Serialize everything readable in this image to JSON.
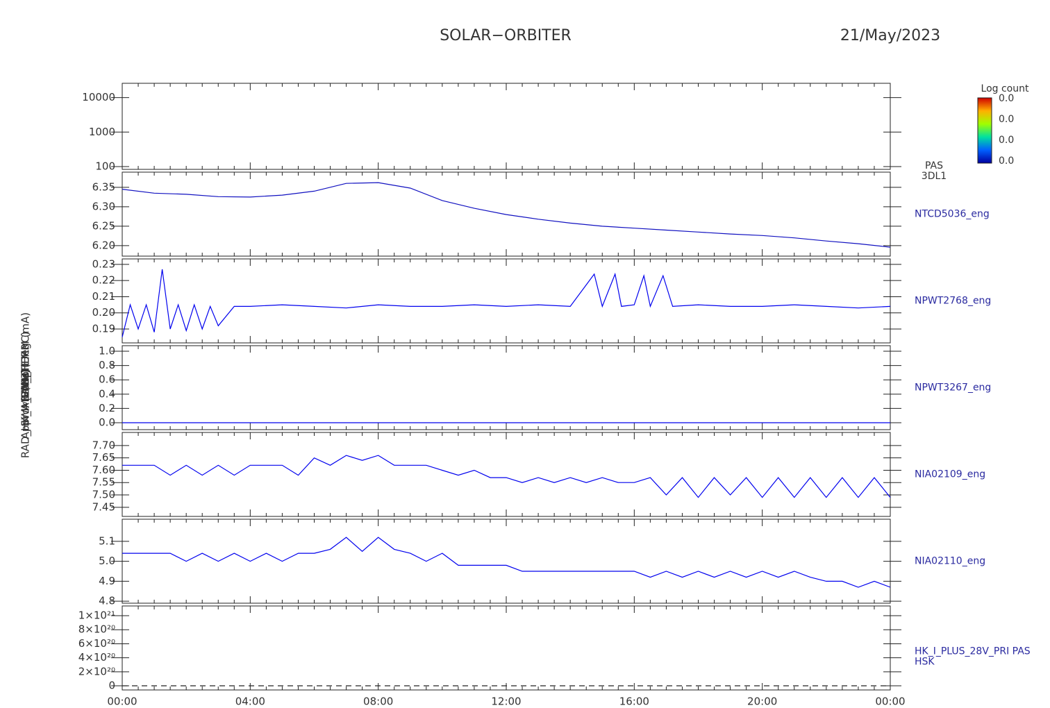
{
  "title": "SOLAR−ORBITER",
  "date": "21/May/2023",
  "xaxis": {
    "xlim": [
      0,
      24
    ],
    "xticks": [
      {
        "value": 0,
        "label": "00:00"
      },
      {
        "value": 4,
        "label": "04:00"
      },
      {
        "value": 8,
        "label": "08:00"
      },
      {
        "value": 12,
        "label": "12:00"
      },
      {
        "value": 16,
        "label": "16:00"
      },
      {
        "value": 20,
        "label": "20:00"
      },
      {
        "value": 24,
        "label": "00:00"
      }
    ],
    "xminor": [
      0.5,
      1,
      1.5,
      2,
      2.5,
      3,
      3.5,
      4.5,
      5,
      5.5,
      6,
      6.5,
      7,
      7.5,
      8.5,
      9,
      9.5,
      10,
      10.5,
      11,
      11.5,
      12.5,
      13,
      13.5,
      14,
      14.5,
      15,
      15.5,
      16.5,
      17,
      17.5,
      18,
      18.5,
      19,
      19.5,
      20.5,
      21,
      21.5,
      22,
      22.5,
      23,
      23.5
    ]
  },
  "chart_data": [
    {
      "type": "spectrogram",
      "log_scale": true,
      "ylabel": "E (eV)",
      "ylim": [
        83,
        26000
      ],
      "yticks": [
        100,
        1000,
        10000
      ],
      "label": [
        "PAS",
        "3DL1"
      ],
      "colorbar": {
        "title": "Log count",
        "ticks": [
          "0.0",
          "0.0",
          "0.0",
          "0.0"
        ]
      }
    },
    {
      "type": "line",
      "ylabel": "Approx Temp (DegC)",
      "ylim": [
        6.173,
        6.389
      ],
      "yticks": [
        {
          "value": 6.2,
          "label": "6.20"
        },
        6.25,
        {
          "value": 6.3,
          "label": "6.30"
        },
        6.35
      ],
      "label": [
        "NTCD5036_eng"
      ],
      "color": "#1010c0",
      "x": [
        0,
        1,
        2,
        3,
        4,
        5,
        6,
        7,
        8,
        9,
        10,
        11,
        12,
        13,
        14,
        15,
        16,
        17,
        18,
        19,
        20,
        21,
        22,
        23,
        24
      ],
      "values": [
        6.345,
        6.335,
        6.332,
        6.326,
        6.325,
        6.33,
        6.34,
        6.36,
        6.362,
        6.348,
        6.316,
        6.296,
        6.28,
        6.268,
        6.258,
        6.25,
        6.245,
        6.24,
        6.235,
        6.23,
        6.226,
        6.22,
        6.212,
        6.205,
        6.196
      ]
    },
    {
      "type": "line",
      "ylabel": "SWA_EAS_TEMP",
      "ylim": [
        0.1814,
        0.2334
      ],
      "yticks": [
        0.19,
        {
          "value": 0.2,
          "label": "0.20"
        },
        0.21,
        0.22,
        0.23
      ],
      "label": [
        "NPWT2768_eng"
      ],
      "color": "#0000ee",
      "x": [
        0,
        0.25,
        0.5,
        0.75,
        1,
        1.25,
        1.5,
        1.75,
        2,
        2.25,
        2.5,
        2.75,
        3,
        3.5,
        4,
        5,
        6,
        7,
        8,
        9,
        10,
        11,
        12,
        13,
        14,
        14.75,
        15,
        15.4,
        15.6,
        16,
        16.3,
        16.5,
        16.9,
        17.2,
        18,
        19,
        20,
        21,
        22,
        23,
        24
      ],
      "values": [
        0.185,
        0.205,
        0.19,
        0.205,
        0.188,
        0.227,
        0.19,
        0.205,
        0.189,
        0.205,
        0.19,
        0.204,
        0.192,
        0.204,
        0.204,
        0.205,
        0.204,
        0.203,
        0.205,
        0.204,
        0.204,
        0.205,
        0.204,
        0.205,
        0.204,
        0.224,
        0.204,
        0.224,
        0.204,
        0.205,
        0.223,
        0.204,
        0.223,
        0.204,
        0.205,
        0.204,
        0.204,
        0.205,
        0.204,
        0.203,
        0.204
      ]
    },
    {
      "type": "line",
      "ylabel": "PWM",
      "ylim": [
        -0.097,
        1.078
      ],
      "yticks": [
        {
          "value": 0,
          "label": "0.0"
        },
        0.2,
        0.4,
        0.6,
        0.8,
        {
          "value": 1,
          "label": "1.0"
        }
      ],
      "label": [
        "NPWT3267_eng"
      ],
      "color": "#0000ee",
      "x": [
        0,
        24
      ],
      "values": [
        0,
        0
      ]
    },
    {
      "type": "line",
      "ylabel": "(Volts)",
      "ylim": [
        7.413,
        7.753
      ],
      "yticks": [
        7.45,
        {
          "value": 7.5,
          "label": "7.50"
        },
        7.55,
        {
          "value": 7.6,
          "label": "7.60"
        },
        7.65,
        {
          "value": 7.7,
          "label": "7.70"
        }
      ],
      "label": [
        "NIA02109_eng"
      ],
      "color": "#0000ee",
      "x": [
        0,
        0.5,
        1,
        1.5,
        2,
        2.5,
        3,
        3.5,
        4,
        4.5,
        5,
        5.5,
        6,
        6.5,
        7,
        7.5,
        8,
        8.5,
        9,
        9.5,
        10,
        10.5,
        11,
        11.5,
        12,
        12.5,
        13,
        13.5,
        14,
        14.5,
        15,
        15.5,
        16,
        16.5,
        17,
        17.5,
        18,
        18.5,
        19,
        19.5,
        20,
        20.5,
        21,
        21.5,
        22,
        22.5,
        23,
        23.5,
        24
      ],
      "values": [
        7.62,
        7.62,
        7.62,
        7.58,
        7.62,
        7.58,
        7.62,
        7.58,
        7.62,
        7.62,
        7.62,
        7.58,
        7.65,
        7.62,
        7.66,
        7.64,
        7.66,
        7.62,
        7.62,
        7.62,
        7.6,
        7.58,
        7.6,
        7.57,
        7.57,
        7.55,
        7.57,
        7.55,
        7.57,
        7.55,
        7.57,
        7.55,
        7.55,
        7.57,
        7.5,
        7.57,
        7.49,
        7.57,
        7.5,
        7.57,
        7.49,
        7.57,
        7.49,
        7.57,
        7.49,
        7.57,
        7.49,
        7.57,
        7.49
      ]
    },
    {
      "type": "line",
      "ylabel": "(Volts)",
      "ylim": [
        4.79,
        5.211
      ],
      "yticks": [
        4.8,
        4.9,
        {
          "value": 5,
          "label": "5.0"
        },
        5.1
      ],
      "label": [
        "NIA02110_eng"
      ],
      "color": "#0000ee",
      "x": [
        0,
        0.5,
        1,
        1.5,
        2,
        2.5,
        3,
        3.5,
        4,
        4.5,
        5,
        5.5,
        6,
        6.5,
        7,
        7.5,
        8,
        8.5,
        9,
        9.5,
        10,
        10.5,
        11,
        11.5,
        12,
        12.5,
        13,
        13.5,
        14,
        14.5,
        15,
        15.5,
        16,
        16.5,
        17,
        17.5,
        18,
        18.5,
        19,
        19.5,
        20,
        20.5,
        21,
        21.5,
        22,
        22.5,
        23,
        23.5,
        24
      ],
      "values": [
        5.04,
        5.04,
        5.04,
        5.04,
        5.0,
        5.04,
        5.0,
        5.04,
        5.0,
        5.04,
        5.0,
        5.04,
        5.04,
        5.06,
        5.12,
        5.05,
        5.12,
        5.06,
        5.04,
        5.0,
        5.04,
        4.98,
        4.98,
        4.98,
        4.98,
        4.95,
        4.95,
        4.95,
        4.95,
        4.95,
        4.95,
        4.95,
        4.95,
        4.92,
        4.95,
        4.92,
        4.95,
        4.92,
        4.95,
        4.92,
        4.95,
        4.92,
        4.95,
        4.92,
        4.9,
        4.9,
        4.87,
        4.9,
        4.87
      ]
    },
    {
      "type": "line",
      "dashed": true,
      "ylabel": "RAD_HK_IMON_THERM (mA)",
      "ylim": [
        -5.9e+19,
        1.139e+21
      ],
      "yticks": [
        0,
        {
          "value": 2e+20,
          "label": "2×10²⁰"
        },
        {
          "value": 4e+20,
          "label": "4×10²⁰"
        },
        {
          "value": 6e+20,
          "label": "6×10²⁰"
        },
        {
          "value": 8e+20,
          "label": "8×10²⁰"
        },
        {
          "value": 1e+21,
          "label": "1×10²¹"
        }
      ],
      "label": [
        "HK_I_PLUS_28V_PRI PAS",
        "HSK"
      ],
      "color": "#222222",
      "x": [
        0,
        24
      ],
      "values": [
        0,
        0
      ]
    }
  ]
}
